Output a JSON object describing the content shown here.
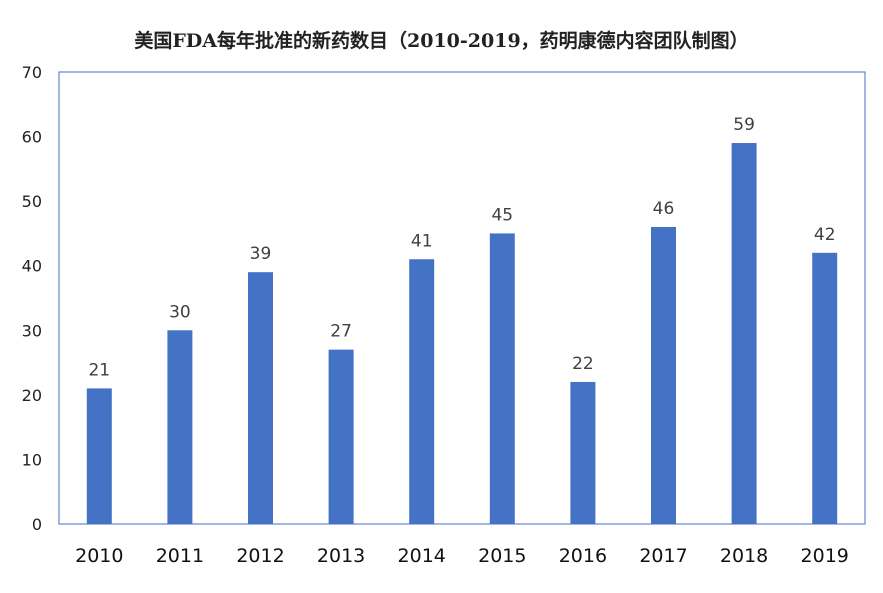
{
  "chart_data": {
    "type": "bar",
    "title": "美国FDA每年批准的新药数目（2010-2019，药明康德内容团队制图）",
    "xlabel": "",
    "ylabel": "",
    "categories": [
      "2010",
      "2011",
      "2012",
      "2013",
      "2014",
      "2015",
      "2016",
      "2017",
      "2018",
      "2019"
    ],
    "values": [
      21,
      30,
      39,
      27,
      41,
      45,
      22,
      46,
      59,
      42
    ],
    "ylim": [
      0,
      70
    ],
    "yticks": [
      0,
      10,
      20,
      30,
      40,
      50,
      60,
      70
    ],
    "grid": false,
    "legend": "none",
    "data_labels": true,
    "bar_color": "#4472C4",
    "frame_color": "#4472C4"
  }
}
